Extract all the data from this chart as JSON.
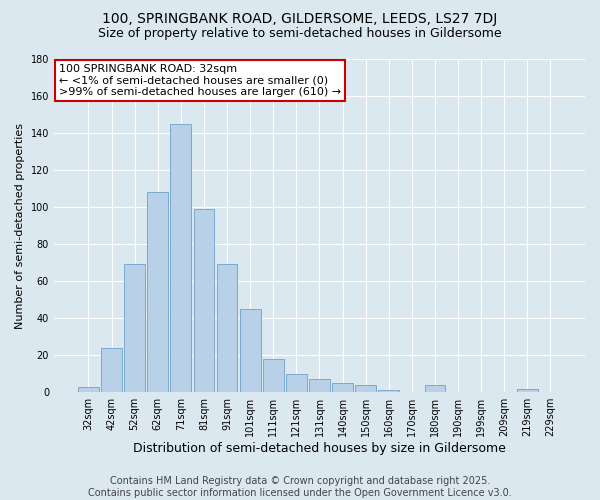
{
  "title": "100, SPRINGBANK ROAD, GILDERSOME, LEEDS, LS27 7DJ",
  "subtitle": "Size of property relative to semi-detached houses in Gildersome",
  "xlabel": "Distribution of semi-detached houses by size in Gildersome",
  "ylabel": "Number of semi-detached properties",
  "categories": [
    "32sqm",
    "42sqm",
    "52sqm",
    "62sqm",
    "71sqm",
    "81sqm",
    "91sqm",
    "101sqm",
    "111sqm",
    "121sqm",
    "131sqm",
    "140sqm",
    "150sqm",
    "160sqm",
    "170sqm",
    "180sqm",
    "190sqm",
    "199sqm",
    "209sqm",
    "219sqm",
    "229sqm"
  ],
  "values": [
    3,
    24,
    69,
    108,
    145,
    99,
    69,
    45,
    18,
    10,
    7,
    5,
    4,
    1,
    0,
    4,
    0,
    0,
    0,
    2,
    0
  ],
  "bar_color": "#b8d0e8",
  "bar_edge_color": "#7aaace",
  "background_color": "#dce8f0",
  "grid_color": "#c8d8e8",
  "annotation_box_text": [
    "100 SPRINGBANK ROAD: 32sqm",
    "← <1% of semi-detached houses are smaller (0)",
    ">99% of semi-detached houses are larger (610) →"
  ],
  "annotation_box_color": "#ffffff",
  "annotation_box_edge_color": "#cc0000",
  "ylim": [
    0,
    180
  ],
  "yticks": [
    0,
    20,
    40,
    60,
    80,
    100,
    120,
    140,
    160,
    180
  ],
  "footer_lines": [
    "Contains HM Land Registry data © Crown copyright and database right 2025.",
    "Contains public sector information licensed under the Open Government Licence v3.0."
  ],
  "title_fontsize": 10,
  "subtitle_fontsize": 9,
  "xlabel_fontsize": 9,
  "ylabel_fontsize": 8,
  "footer_fontsize": 7,
  "annotation_fontsize": 8,
  "tick_fontsize": 7
}
